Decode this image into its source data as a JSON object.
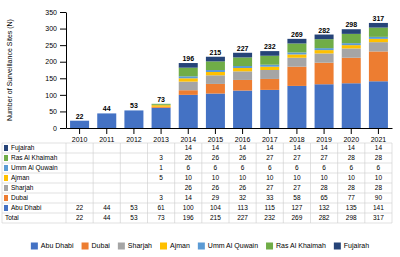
{
  "chart_data": {
    "type": "bar",
    "stacked": true,
    "legend": "bottom",
    "ylabel": "Number of Surveillance Sites (N)",
    "categories": [
      "2010",
      "2011",
      "2012",
      "2013",
      "2014",
      "2015",
      "2016",
      "2017",
      "2018",
      "2019",
      "2020",
      "2021"
    ],
    "series": [
      {
        "name": "Abu Dhabi",
        "color": "#4472C4",
        "values": [
          22,
          44,
          53,
          61,
          100,
          104,
          113,
          115,
          127,
          132,
          135,
          141
        ]
      },
      {
        "name": "Dubai",
        "color": "#ED7D31",
        "values": [
          0,
          0,
          0,
          3,
          14,
          29,
          32,
          33,
          58,
          65,
          77,
          90
        ]
      },
      {
        "name": "Sharjah",
        "color": "#A5A5A5",
        "values": [
          0,
          0,
          0,
          0,
          26,
          26,
          26,
          27,
          27,
          28,
          28,
          28
        ]
      },
      {
        "name": "Ajman",
        "color": "#FFC000",
        "values": [
          0,
          0,
          0,
          5,
          10,
          10,
          10,
          10,
          10,
          10,
          10,
          10
        ]
      },
      {
        "name": "Umm Al Quwain",
        "color": "#5B9BD5",
        "values": [
          0,
          0,
          0,
          1,
          6,
          6,
          6,
          6,
          6,
          6,
          6,
          6
        ]
      },
      {
        "name": "Ras Al Khaimah",
        "color": "#70AD47",
        "values": [
          0,
          0,
          0,
          3,
          26,
          26,
          26,
          27,
          27,
          27,
          28,
          28
        ]
      },
      {
        "name": "Fujairah",
        "color": "#264478",
        "values": [
          0,
          0,
          0,
          0,
          14,
          14,
          14,
          14,
          14,
          14,
          14,
          14
        ]
      }
    ],
    "totals": [
      22,
      44,
      53,
      73,
      196,
      215,
      227,
      232,
      269,
      282,
      298,
      317
    ],
    "total_label": "Total",
    "ylim": [
      0,
      350
    ],
    "yticks": [
      0,
      50,
      100,
      150,
      200,
      250,
      300,
      350
    ]
  }
}
